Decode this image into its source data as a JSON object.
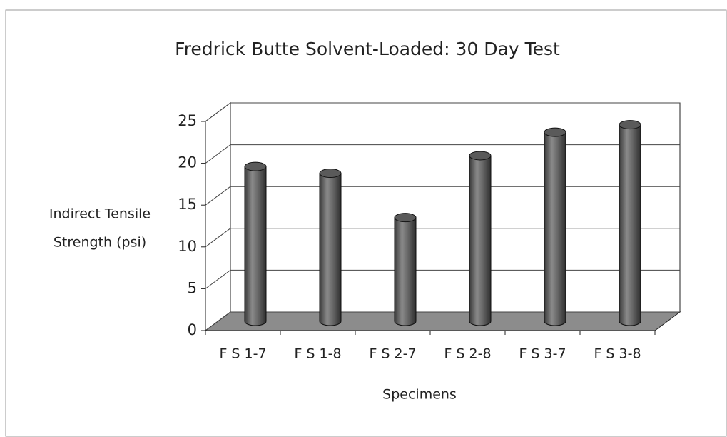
{
  "chart_data": {
    "type": "bar3d",
    "title": "Fredrick Butte Solvent-Loaded: 30 Day Test",
    "y_label": [
      "Indirect Tensile",
      "Strength (psi)"
    ],
    "x_label": "Specimens",
    "categories": [
      "F S 1-7",
      "F S 1-8",
      "F S 2-7",
      "F S 2-8",
      "F S 3-7",
      "F S 3-8"
    ],
    "values": [
      18.5,
      17.7,
      12.4,
      19.8,
      22.6,
      23.5
    ],
    "color": "#6e6e6e",
    "ylim": [
      0,
      25
    ],
    "yticks": [
      0,
      5,
      10,
      15,
      20,
      25
    ],
    "grid": true
  }
}
